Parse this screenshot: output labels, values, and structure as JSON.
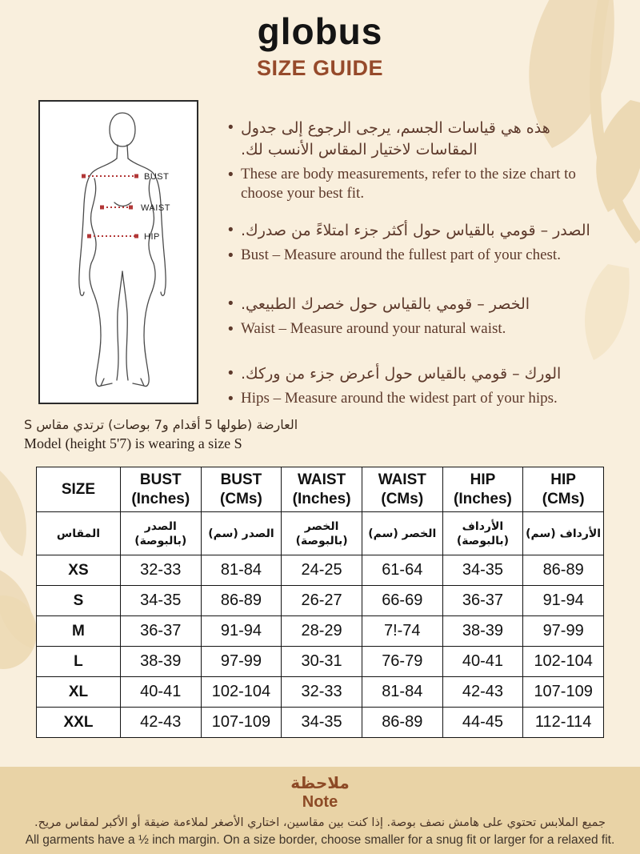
{
  "header": {
    "logo": "globus",
    "title": "SIZE GUIDE"
  },
  "colors": {
    "background": "#f9efdd",
    "accent_rust": "#964a2b",
    "text_brown": "#5d392b",
    "note_band": "#e9d3a6",
    "leaf": "#eedcbb",
    "measure_line_red": "#b23737",
    "table_border": "#141414"
  },
  "diagram": {
    "labels": {
      "bust": "BUST",
      "waist": "WAIST",
      "hip": "HIP"
    }
  },
  "bullets": [
    {
      "ar": "هذه هي قياسات الجسم، يرجى الرجوع إلى جدول المقاسات لاختيار المقاس الأنسب لك.",
      "en": "These are body measurements, refer to the size chart to choose your best fit."
    },
    {
      "ar": "الصدر – قومي بالقياس حول أكثر جزء امتلاءً من صدرك.",
      "en": "Bust – Measure around the fullest part of your chest."
    },
    {
      "ar": "الخصر – قومي بالقياس حول خصرك الطبيعي.",
      "en": "Waist – Measure around your natural waist."
    },
    {
      "ar": "الورك – قومي بالقياس حول أعرض جزء من وركك.",
      "en": "Hips – Measure around the widest part of your hips."
    }
  ],
  "model_note": {
    "ar": "العارضة (طولها 5 أقدام و7 بوصات) ترتدي مقاس S",
    "en": "Model (height 5'7) is wearing a size S"
  },
  "table": {
    "headers_en": [
      [
        "SIZE",
        ""
      ],
      [
        "BUST",
        "(Inches)"
      ],
      [
        "BUST",
        "(CMs)"
      ],
      [
        "WAIST",
        "(Inches)"
      ],
      [
        "WAIST",
        "(CMs)"
      ],
      [
        "HIP",
        "(Inches)"
      ],
      [
        "HIP",
        "(CMs)"
      ]
    ],
    "headers_ar": [
      [
        "المقاس",
        ""
      ],
      [
        "الصدر",
        "(بالبوصة)"
      ],
      [
        "الصدر (سم)",
        ""
      ],
      [
        "الخصر",
        "(بالبوصة)"
      ],
      [
        "الخصر (سم)",
        ""
      ],
      [
        "الأرداف",
        "(بالبوصة)"
      ],
      [
        "الأرداف (سم)",
        ""
      ]
    ],
    "rows": [
      [
        "XS",
        "32-33",
        "81-84",
        "24-25",
        "61-64",
        "34-35",
        "86-89"
      ],
      [
        "S",
        "34-35",
        "86-89",
        "26-27",
        "66-69",
        "36-37",
        "91-94"
      ],
      [
        "M",
        "36-37",
        "91-94",
        "28-29",
        "7!-74",
        "38-39",
        "97-99"
      ],
      [
        "L",
        "38-39",
        "97-99",
        "30-31",
        "76-79",
        "40-41",
        "102-104"
      ],
      [
        "XL",
        "40-41",
        "102-104",
        "32-33",
        "81-84",
        "42-43",
        "107-109"
      ],
      [
        "XXL",
        "42-43",
        "107-109",
        "34-35",
        "86-89",
        "44-45",
        "112-114"
      ]
    ]
  },
  "note": {
    "title_ar": "ملاحظة",
    "title_en": "Note",
    "body_ar": "جميع الملابس تحتوي على هامش نصف بوصة. إذا كنت بين مقاسين، اختاري الأصغر لملاءمة ضيقة أو الأكبر لمقاس مريح.",
    "body_en": "All garments have a ½ inch margin. On a size border, choose smaller for a snug fit or larger for a relaxed fit."
  }
}
